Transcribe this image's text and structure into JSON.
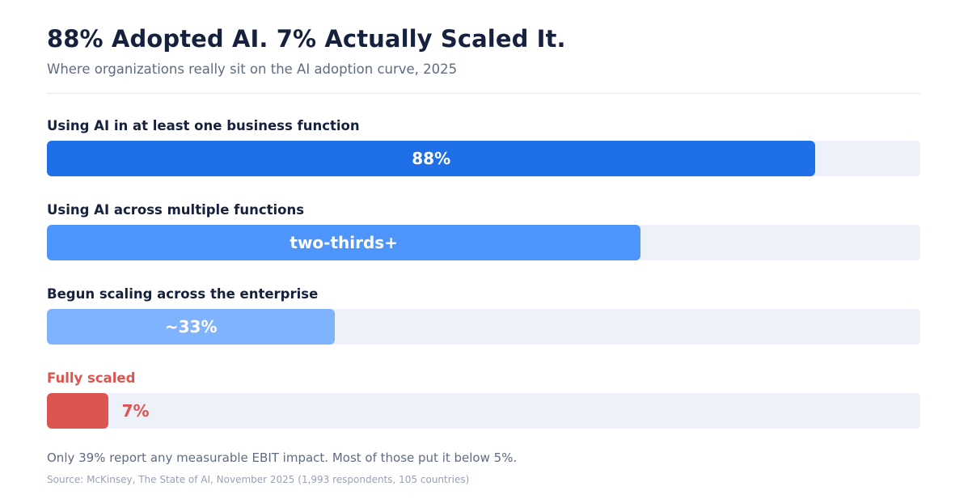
{
  "title": "88% Adopted AI. 7% Actually Scaled It.",
  "subtitle": "Where organizations really sit on the AI adoption curve, 2025",
  "note": "Only 39% report any measurable EBIT impact. Most of those put it below 5%.",
  "source": "Source: McKinsey, The State of AI, November 2025 (1,993 respondents, 105 countries)",
  "chart_data": {
    "type": "bar",
    "orientation": "horizontal",
    "xlim": [
      0,
      100
    ],
    "unit": "%",
    "categories": [
      "Using AI in at least one business function",
      "Using AI across multiple functions",
      "Begun scaling across the enterprise",
      "Fully scaled"
    ],
    "values": [
      88,
      68,
      33,
      7
    ],
    "value_labels": [
      "88%",
      "two-thirds+",
      "~33%",
      "7%"
    ],
    "colors": [
      "#1f6fe8",
      "#4d95fb",
      "#80b3fd",
      "#dc5550"
    ],
    "highlight_index": 3
  }
}
